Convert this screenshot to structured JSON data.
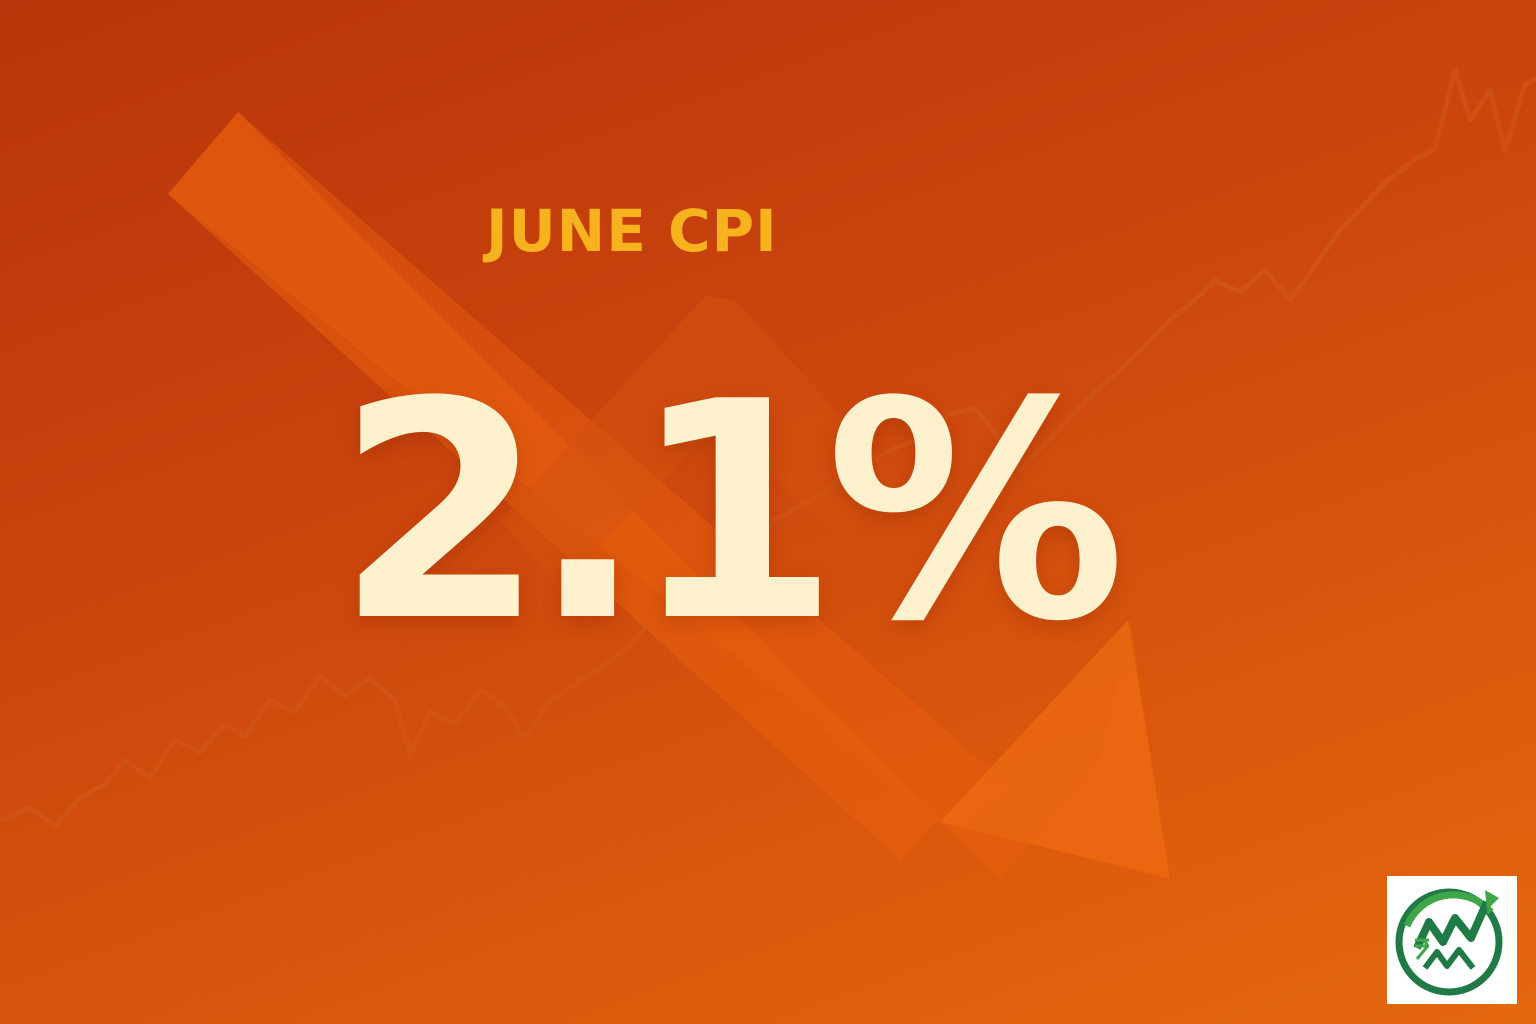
{
  "title": "JUNE CPI",
  "value": "2.1%",
  "colors": {
    "background_top": "#b7350a",
    "background_bottom": "#e4680e",
    "title": "#f7b21e",
    "value": "#fdf0cc",
    "arrow": "#e8600f",
    "logo_green": "#1f7a45",
    "logo_ring": "#3fa64a"
  },
  "icons": {
    "down_arrow": "trend-down-arrow-icon",
    "line": "market-line-icon",
    "logo": "brand-logo-icon"
  }
}
